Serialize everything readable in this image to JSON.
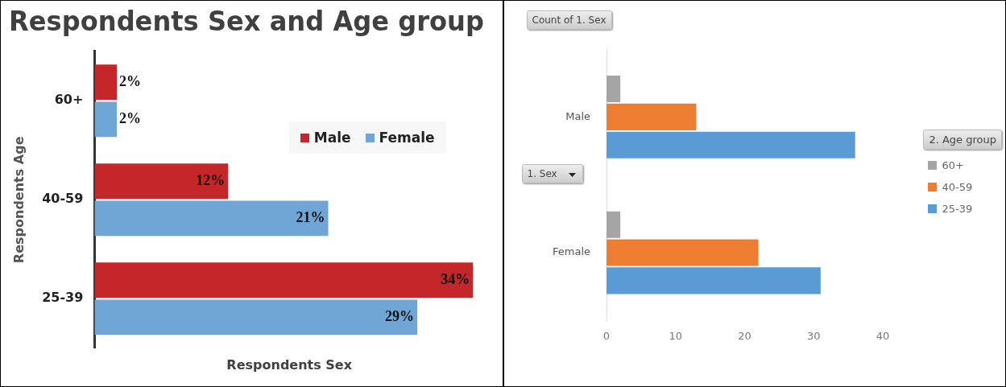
{
  "chart_data": [
    {
      "type": "bar",
      "orientation": "horizontal",
      "title": "Respondents Sex and Age group",
      "xlabel": "Respondents Sex",
      "ylabel": "Respondents Age",
      "categories": [
        "60+",
        "40-59",
        "25-39"
      ],
      "series": [
        {
          "name": "Male",
          "color": "#c4262a",
          "values": [
            2,
            12,
            34
          ],
          "value_labels": [
            "2%",
            "12%",
            "34%"
          ]
        },
        {
          "name": "Female",
          "color": "#6fa6d6",
          "values": [
            2,
            21,
            29
          ],
          "value_labels": [
            "2%",
            "21%",
            "29%"
          ]
        }
      ],
      "legend": "top right",
      "tick_labels": "y"
    },
    {
      "type": "bar",
      "orientation": "horizontal",
      "legend_title": "2. Age group",
      "categories": [
        "Male",
        "Female"
      ],
      "series": [
        {
          "name": "60+",
          "color": "#a5a5a5",
          "values": [
            2,
            2
          ]
        },
        {
          "name": "40-59",
          "color": "#ed7d31",
          "values": [
            13,
            22
          ]
        },
        {
          "name": "25-39",
          "color": "#5b9bd5",
          "values": [
            36,
            31
          ]
        }
      ],
      "xlim": [
        0,
        40
      ],
      "xticks": [
        0,
        10,
        20,
        30,
        40
      ],
      "legend": "right",
      "annotations": [
        "Count of 1. Sex",
        "1. Sex"
      ]
    }
  ]
}
